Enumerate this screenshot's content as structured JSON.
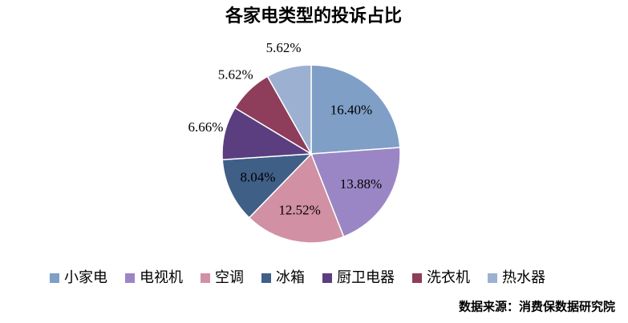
{
  "chart_data": {
    "type": "pie",
    "title": "各家电类型的投诉占比",
    "categories": [
      "小家电",
      "电视机",
      "空调",
      "冰箱",
      "厨卫电器",
      "洗衣机",
      "热水器"
    ],
    "values": [
      16.4,
      13.88,
      12.52,
      8.04,
      6.66,
      5.62,
      5.62
    ],
    "value_labels": [
      "16.40%",
      "13.88%",
      "12.52%",
      "8.04%",
      "6.66%",
      "5.62%",
      "5.62%"
    ],
    "colors": [
      "#7f9fc6",
      "#9b86c5",
      "#d190a4",
      "#3f5f87",
      "#5a3e80",
      "#8e3d5b",
      "#9cb1d2"
    ],
    "legend": "bottom",
    "source": "数据来源：消费保数据研究院"
  }
}
